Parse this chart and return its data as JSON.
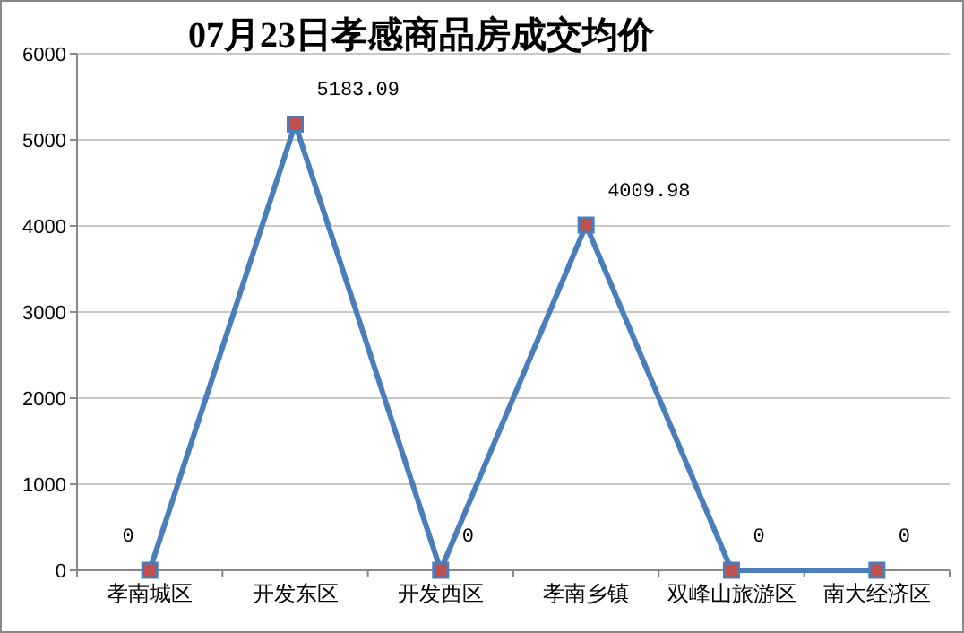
{
  "chart_data": {
    "type": "line",
    "title": "07月23日孝感商品房成交均价",
    "categories": [
      "孝南城区",
      "开发东区",
      "开发西区",
      "孝南乡镇",
      "双峰山旅游区",
      "南大经济区"
    ],
    "series": [
      {
        "color": "#4a7ebb",
        "values": [
          0,
          5183.09,
          0,
          4009.98,
          0,
          0
        ]
      }
    ],
    "ylim": [
      0,
      6000
    ],
    "yticks": [
      0,
      1000,
      2000,
      3000,
      4000,
      5000,
      6000
    ],
    "grid": "y",
    "marker": "square",
    "line_style": "solid",
    "data_labels": true
  }
}
